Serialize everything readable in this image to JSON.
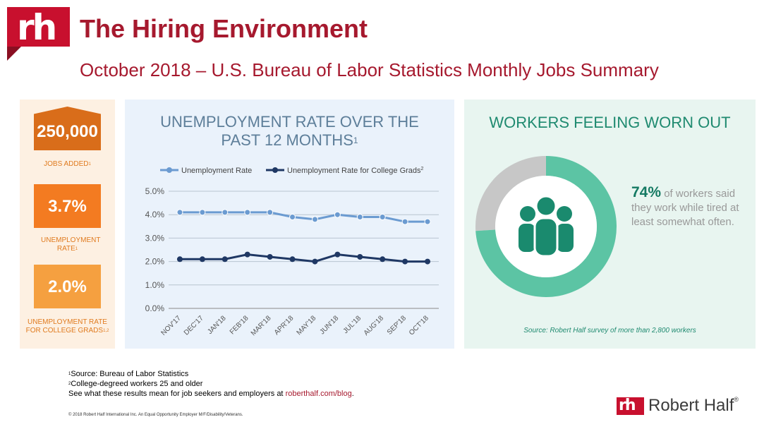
{
  "header": {
    "logo_text": "rh",
    "title": "The Hiring Environment",
    "subtitle": "October 2018 – U.S. Bureau of Labor Statistics Monthly Jobs Summary"
  },
  "stats": [
    {
      "value": "250,000",
      "label": "JOBS ADDED",
      "sup": "1",
      "color": "#d96d1a"
    },
    {
      "value": "3.7%",
      "label": "UNEMPLOYMENT RATE",
      "sup": "1",
      "color": "#f37b21"
    },
    {
      "value": "2.0%",
      "label": "UNEMPLOYMENT RATE FOR COLLEGE GRADS",
      "sup": "1,2",
      "color": "#f5a040"
    }
  ],
  "chart_title": "UNEMPLOYMENT RATE OVER THE PAST 12 MONTHS",
  "chart_title_sup": "1",
  "chart_data": {
    "type": "line",
    "title": "UNEMPLOYMENT RATE OVER THE PAST 12 MONTHS",
    "categories": [
      "NOV'17",
      "DEC'17",
      "JAN'18",
      "FEB'18",
      "MAR'18",
      "APR'18",
      "MAY'18",
      "JUN'18",
      "JUL'18",
      "AUG'18",
      "SEP'18",
      "OCT'18"
    ],
    "series": [
      {
        "name": "Unemployment Rate",
        "color": "#6b9bd1",
        "values": [
          4.1,
          4.1,
          4.1,
          4.1,
          4.1,
          3.9,
          3.8,
          4.0,
          3.9,
          3.9,
          3.7,
          3.7
        ]
      },
      {
        "name": "Unemployment Rate for College Grads",
        "sup": "2",
        "color": "#1f3864",
        "values": [
          2.1,
          2.1,
          2.1,
          2.3,
          2.2,
          2.1,
          2.0,
          2.3,
          2.2,
          2.1,
          2.0,
          2.0
        ]
      }
    ],
    "yticks": [
      "0.0%",
      "1.0%",
      "2.0%",
      "3.0%",
      "4.0%",
      "5.0%"
    ],
    "ylim": [
      0,
      5
    ],
    "grid": true,
    "legend": "top"
  },
  "workers": {
    "title": "WORKERS FEELING WORN OUT",
    "pct": "74%",
    "text": "of workers said they work while tired at least somewhat often.",
    "donut_share": 0.74,
    "colors": {
      "main": "#5cc4a4",
      "rest": "#c7c7c7",
      "icon": "#1a8a6e"
    },
    "icon": "people-group-icon",
    "source": "Source: Robert Half survey of more than 2,800 workers"
  },
  "footnotes": {
    "line1_sup": "1",
    "line1": "Source: Bureau of Labor Statistics",
    "line2_sup": "2",
    "line2": "College-degreed workers 25 and older",
    "line3": "See what these results mean for job seekers and employers at ",
    "link": "roberthalf.com/blog",
    "line3_end": "."
  },
  "copyright": "© 2018 Robert Half International Inc. An Equal Opportunity Employer M/F/Disability/Veterans.",
  "brand": {
    "logo_text": "rh",
    "name": "Robert Half",
    "reg": "®"
  }
}
